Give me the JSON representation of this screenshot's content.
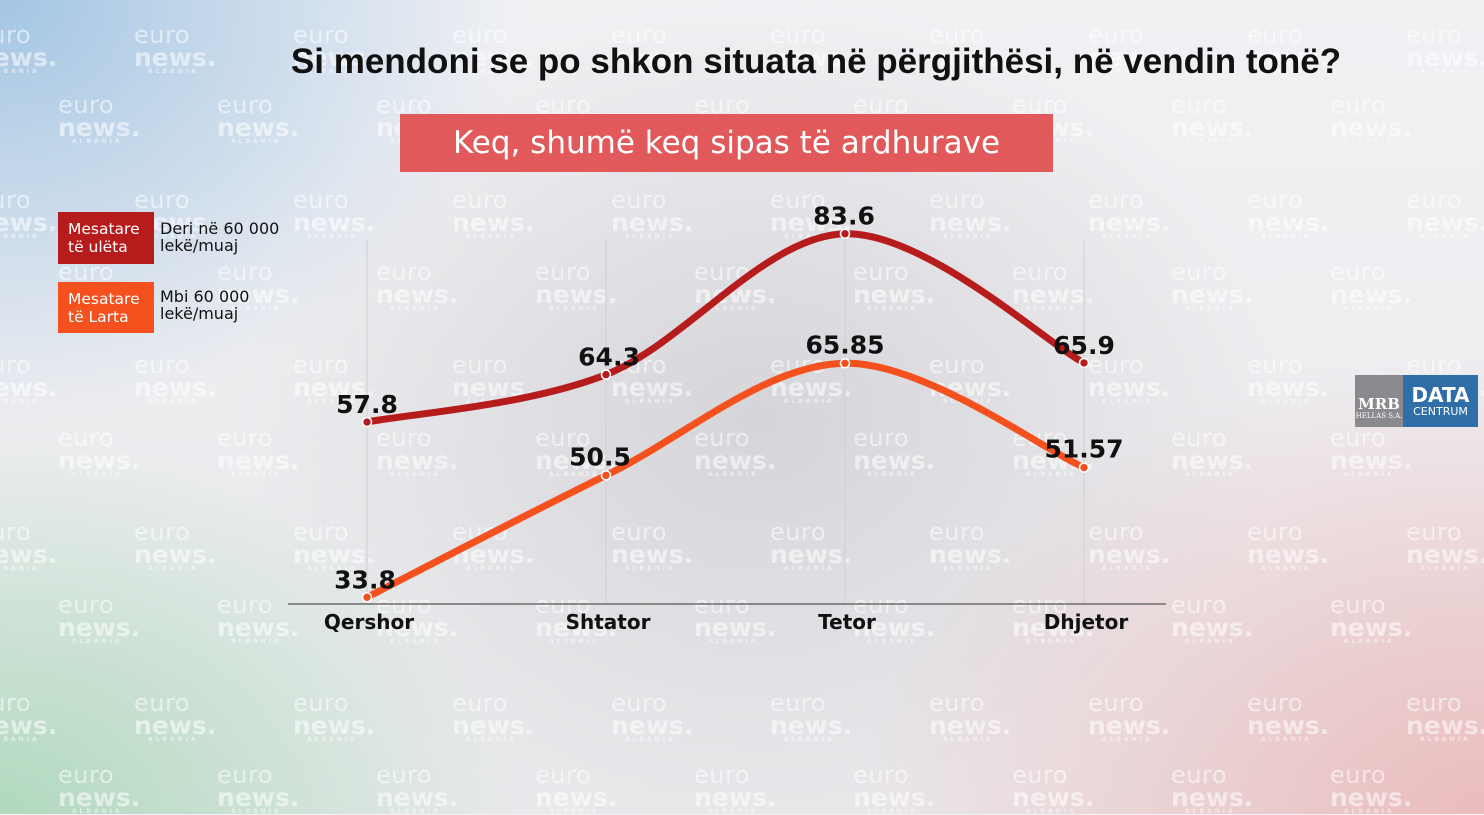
{
  "watermark": {
    "line1": "euro",
    "line2": "news.",
    "line3": "ALBANIA"
  },
  "title": "Si mendoni se po shkon situata në përgjithësi, në vendin tonë?",
  "subtitle": "Keq, shumë keq sipas të ardhurave",
  "legend": [
    {
      "label_line1": "Mesatare",
      "label_line2": "të ulëta",
      "desc_line1": "Deri në 60 000",
      "desc_line2": "lekë/muaj",
      "color": "#b71c1c"
    },
    {
      "label_line1": "Mesatare",
      "label_line2": "të Larta",
      "desc_line1": "Mbi 60 000",
      "desc_line2": "lekë/muaj",
      "color": "#f4511e"
    }
  ],
  "logo": {
    "left_line1": "MRB",
    "left_line2": "HELLAS S.A.",
    "right_line1": "DATA",
    "right_line2": "CENTRUM"
  },
  "chart_data": {
    "type": "line",
    "title": "Si mendoni se po shkon situata në përgjithësi, në vendin tonë?",
    "subtitle": "Keq, shumë keq sipas të ardhurave",
    "categories": [
      "Qershor",
      "Shtator",
      "Tetor",
      "Dhjetor"
    ],
    "series": [
      {
        "name": "Mesatare të ulëta",
        "values": [
          57.8,
          64.3,
          83.6,
          65.9
        ],
        "labels": [
          "57.8",
          "64.3",
          "83.6",
          "65.9"
        ],
        "color": "#b71c1c"
      },
      {
        "name": "Mesatare të Larta",
        "values": [
          33.8,
          50.5,
          65.85,
          51.57
        ],
        "labels": [
          "33.8",
          "50.5",
          "65.85",
          "51.57"
        ],
        "color": "#f4511e"
      }
    ],
    "xlabel": "",
    "ylabel": "",
    "ylim": [
      0,
      100
    ],
    "grid": "vertical lines at categories",
    "legend_position": "top-left"
  }
}
